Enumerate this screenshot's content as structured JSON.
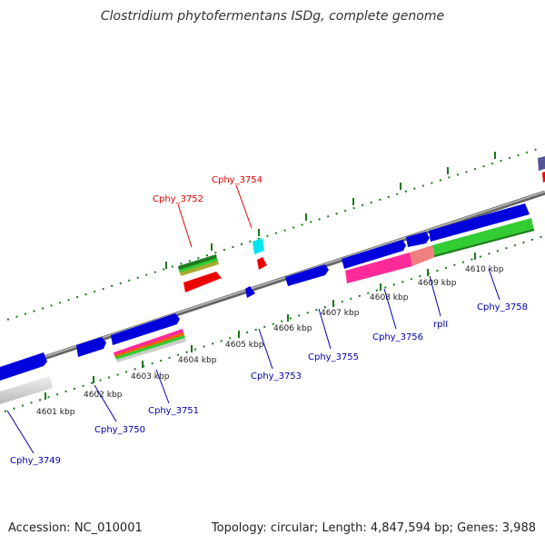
{
  "title": "Clostridium phytofermentans ISDg, complete genome",
  "footer": {
    "accession": "Accession: NC_010001",
    "summary": "Topology: circular; Length: 4,847,594 bp; Genes: 3,988"
  },
  "colors": {
    "forward_cds": "#0000dd",
    "reverse_cds": "#ee0000",
    "highlight_label": "#dd0000",
    "normal_label": "#0000aa",
    "backbone": "#888888",
    "tick": "#1a7a1a",
    "rna": "#ff2a9a",
    "green_feature": "#33cc33",
    "cyan_feature": "#00e5ee"
  },
  "scale": {
    "labels": [
      "4601 kbp",
      "4602 kbp",
      "4603 kbp",
      "4604 kbp",
      "4605 kbp",
      "4606 kbp",
      "4607 kbp",
      "4608 kbp",
      "4609 kbp",
      "4610 kbp"
    ]
  },
  "genes": {
    "top": [
      "Cphy_3752",
      "Cphy_3754"
    ],
    "bottom": [
      "Cphy_3749",
      "Cphy_3750",
      "Cphy_3751",
      "Cphy_3753",
      "Cphy_3755",
      "Cphy_3756",
      "rplI",
      "Cphy_3758"
    ]
  }
}
